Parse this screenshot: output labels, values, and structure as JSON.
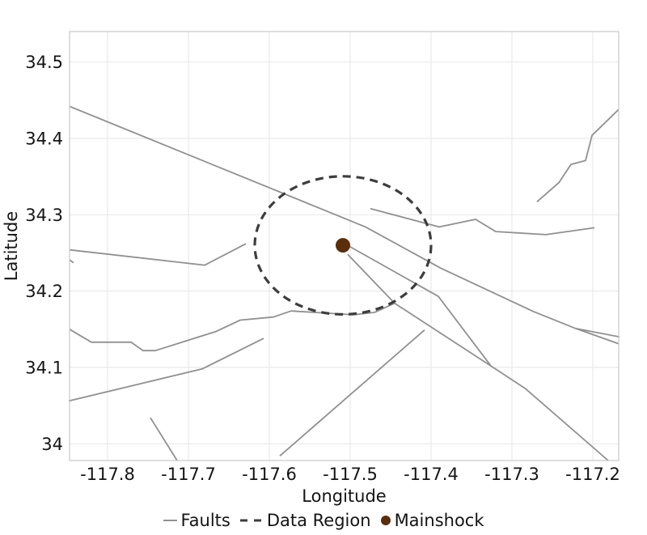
{
  "figure": {
    "x_axis_title": "Longitude",
    "y_axis_title": "Latitude"
  },
  "legend": {
    "faults_label": "Faults",
    "data_region_label": "Data Region",
    "mainshock_label": "Mainshock"
  },
  "colors": {
    "fault_line": "#909090",
    "data_region": "#3d3d3d",
    "mainshock": "#5a2e0b",
    "grid": "#eaeaea",
    "panel_border": "#c8c8c8",
    "tick_text": "#141414"
  },
  "chart_data": {
    "type": "line",
    "title": "",
    "xlabel": "Longitude",
    "ylabel": "Latitude",
    "xlim": [
      -117.847,
      -117.168
    ],
    "ylim": [
      33.978,
      34.54
    ],
    "grid": true,
    "legend_position": "bottom",
    "x_ticks": [
      -117.8,
      -117.7,
      -117.6,
      -117.5,
      -117.4,
      -117.3,
      -117.2
    ],
    "x_tick_labels": [
      "-117.8",
      "-117.7",
      "-117.6",
      "-117.5",
      "-117.4",
      "-117.3",
      "-117.2"
    ],
    "y_ticks": [
      34.0,
      34.1,
      34.2,
      34.3,
      34.4,
      34.5
    ],
    "y_tick_labels": [
      "34",
      "34.1",
      "34.2",
      "34.3",
      "34.4",
      "34.5"
    ],
    "series": [
      {
        "name": "Faults",
        "kind": "polylines",
        "lines": [
          [
            [
              -117.847,
              34.442
            ],
            [
              -117.481,
              34.284
            ],
            [
              -117.388,
              34.23
            ],
            [
              -117.273,
              34.173
            ],
            [
              -117.221,
              34.151
            ],
            [
              -117.168,
              34.131
            ]
          ],
          [
            [
              -117.221,
              34.151
            ],
            [
              -117.167,
              34.14
            ]
          ],
          [
            [
              -117.847,
              34.254
            ],
            [
              -117.68,
              34.234
            ],
            [
              -117.629,
              34.262
            ]
          ],
          [
            [
              -117.847,
              34.241
            ],
            [
              -117.842,
              34.237
            ]
          ],
          [
            [
              -117.269,
              34.317
            ],
            [
              -117.242,
              34.342
            ],
            [
              -117.227,
              34.366
            ],
            [
              -117.209,
              34.371
            ],
            [
              -117.201,
              34.404
            ],
            [
              -117.168,
              34.438
            ]
          ],
          [
            [
              -117.475,
              34.308
            ],
            [
              -117.39,
              34.284
            ],
            [
              -117.345,
              34.294
            ],
            [
              -117.32,
              34.278
            ],
            [
              -117.258,
              34.274
            ],
            [
              -117.198,
              34.283
            ]
          ],
          [
            [
              -117.505,
              34.261
            ],
            [
              -117.391,
              34.193
            ],
            [
              -117.326,
              34.102
            ]
          ],
          [
            [
              -117.503,
              34.248
            ],
            [
              -117.445,
              34.184
            ]
          ],
          [
            [
              -117.847,
              34.15
            ],
            [
              -117.82,
              34.133
            ],
            [
              -117.771,
              34.133
            ],
            [
              -117.756,
              34.122
            ],
            [
              -117.741,
              34.122
            ],
            [
              -117.666,
              34.147
            ],
            [
              -117.636,
              34.162
            ],
            [
              -117.595,
              34.166
            ],
            [
              -117.573,
              34.174
            ],
            [
              -117.496,
              34.169
            ],
            [
              -117.47,
              34.172
            ],
            [
              -117.445,
              34.184
            ],
            [
              -117.326,
              34.102
            ],
            [
              -117.283,
              34.072
            ],
            [
              -117.181,
              33.978
            ]
          ],
          [
            [
              -117.587,
              33.984
            ],
            [
              -117.408,
              34.149
            ]
          ],
          [
            [
              -117.848,
              34.056
            ],
            [
              -117.683,
              34.098
            ],
            [
              -117.607,
              34.138
            ]
          ],
          [
            [
              -117.747,
              34.034
            ],
            [
              -117.714,
              33.978
            ]
          ]
        ]
      },
      {
        "name": "Data Region",
        "kind": "ellipse",
        "center": [
          -117.509,
          34.26
        ],
        "radius_lon": 0.109,
        "radius_lat": 0.0905
      },
      {
        "name": "Mainshock",
        "kind": "point",
        "lon": -117.509,
        "lat": 34.26
      }
    ]
  }
}
